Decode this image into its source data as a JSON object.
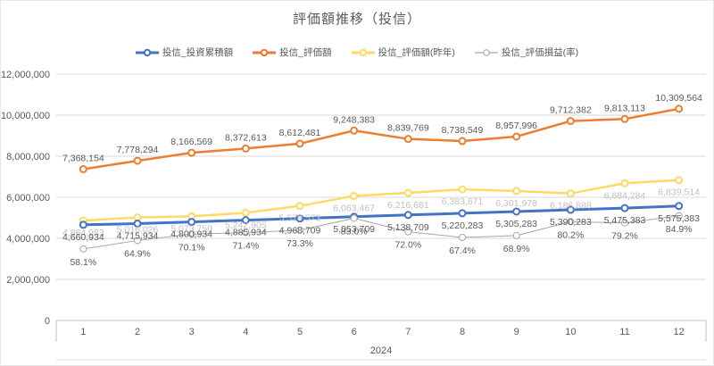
{
  "chart_data": {
    "type": "line",
    "title": "評価額推移（投信）",
    "x_group_label": "2024",
    "categories": [
      "1",
      "2",
      "3",
      "4",
      "5",
      "6",
      "7",
      "8",
      "9",
      "10",
      "11",
      "12"
    ],
    "y_axis": {
      "min": 0,
      "max": 12000000,
      "tick_labels": [
        "0",
        "2,000,000",
        "4,000,000",
        "6,000,000",
        "8,000,000",
        "10,000,000",
        "12,000,000"
      ]
    },
    "secondary_axis_hidden": {
      "min_pct": 0,
      "max_pct": 200
    },
    "grid": true,
    "legend_position": "top",
    "colors": {
      "blue": "#4472C4",
      "orange": "#ED7D31",
      "yellow": "#FFD966",
      "gray": "#A6A6A6",
      "gridline": "#D9D9D9",
      "axis_line": "#BFBFBF",
      "text": "#595959",
      "yellow_label_text": "#BFBFBF"
    },
    "series": [
      {
        "name": "投信_投資累積額",
        "color": "#4472C4",
        "axis": "primary",
        "line_width": 3,
        "label_side": "below",
        "label_color": "#595959",
        "values": [
          4660934,
          4715934,
          4800934,
          4885934,
          4968709,
          5053709,
          5138709,
          5220283,
          5305283,
          5390283,
          5475383,
          5575383
        ],
        "labels": [
          "4,660,934",
          "4,715,934",
          "4,800,934",
          "4,885,934",
          "4,968,709",
          "5,053,709",
          "5,138,709",
          "5,220,283",
          "5,305,283",
          "5,390,283",
          "5,475,383",
          "5,575,383"
        ]
      },
      {
        "name": "投信_評価額",
        "color": "#ED7D31",
        "axis": "primary",
        "line_width": 2.5,
        "label_side": "above",
        "label_color": "#595959",
        "values": [
          7368154,
          7778294,
          8166569,
          8372613,
          8612481,
          9248383,
          8839769,
          8738549,
          8957996,
          9712382,
          9813113,
          10309564
        ],
        "labels": [
          "7,368,154",
          "7,778,294",
          "8,166,569",
          "8,372,613",
          "8,612,481",
          "9,248,383",
          "8,839,769",
          "8,738,549",
          "8,957,996",
          "9,712,382",
          "9,813,113",
          "10,309,564"
        ]
      },
      {
        "name": "投信_評価額(昨年)",
        "color": "#FFD966",
        "axis": "primary",
        "line_width": 2.5,
        "label_side": "below",
        "label_color": "#BFBFBF",
        "values": [
          4864983,
          5016026,
          5073750,
          5242905,
          5579573,
          6063467,
          6216681,
          6383671,
          6301978,
          6186888,
          6684284,
          6839514
        ],
        "labels": [
          "4,864,983",
          "5,016,026",
          "5,073,750",
          "5,242,905",
          "5,579,573",
          "6,063,467",
          "6,216,681",
          "6,383,671",
          "6,301,978",
          "6,186,888",
          "6,684,284",
          "6,839,514"
        ]
      },
      {
        "name": "投信_評価損益(率)",
        "color": "#A6A6A6",
        "axis": "secondary",
        "line_width": 1,
        "open_marker": true,
        "label_side": "below",
        "label_color": "#595959",
        "values": [
          58.1,
          64.9,
          70.1,
          71.4,
          73.3,
          83.0,
          72.0,
          67.4,
          68.9,
          80.2,
          79.2,
          84.9
        ],
        "labels": [
          "58.1%",
          "64.9%",
          "70.1%",
          "71.4%",
          "73.3%",
          "83.0%",
          "72.0%",
          "67.4%",
          "68.9%",
          "80.2%",
          "79.2%",
          "84.9%"
        ]
      }
    ]
  }
}
